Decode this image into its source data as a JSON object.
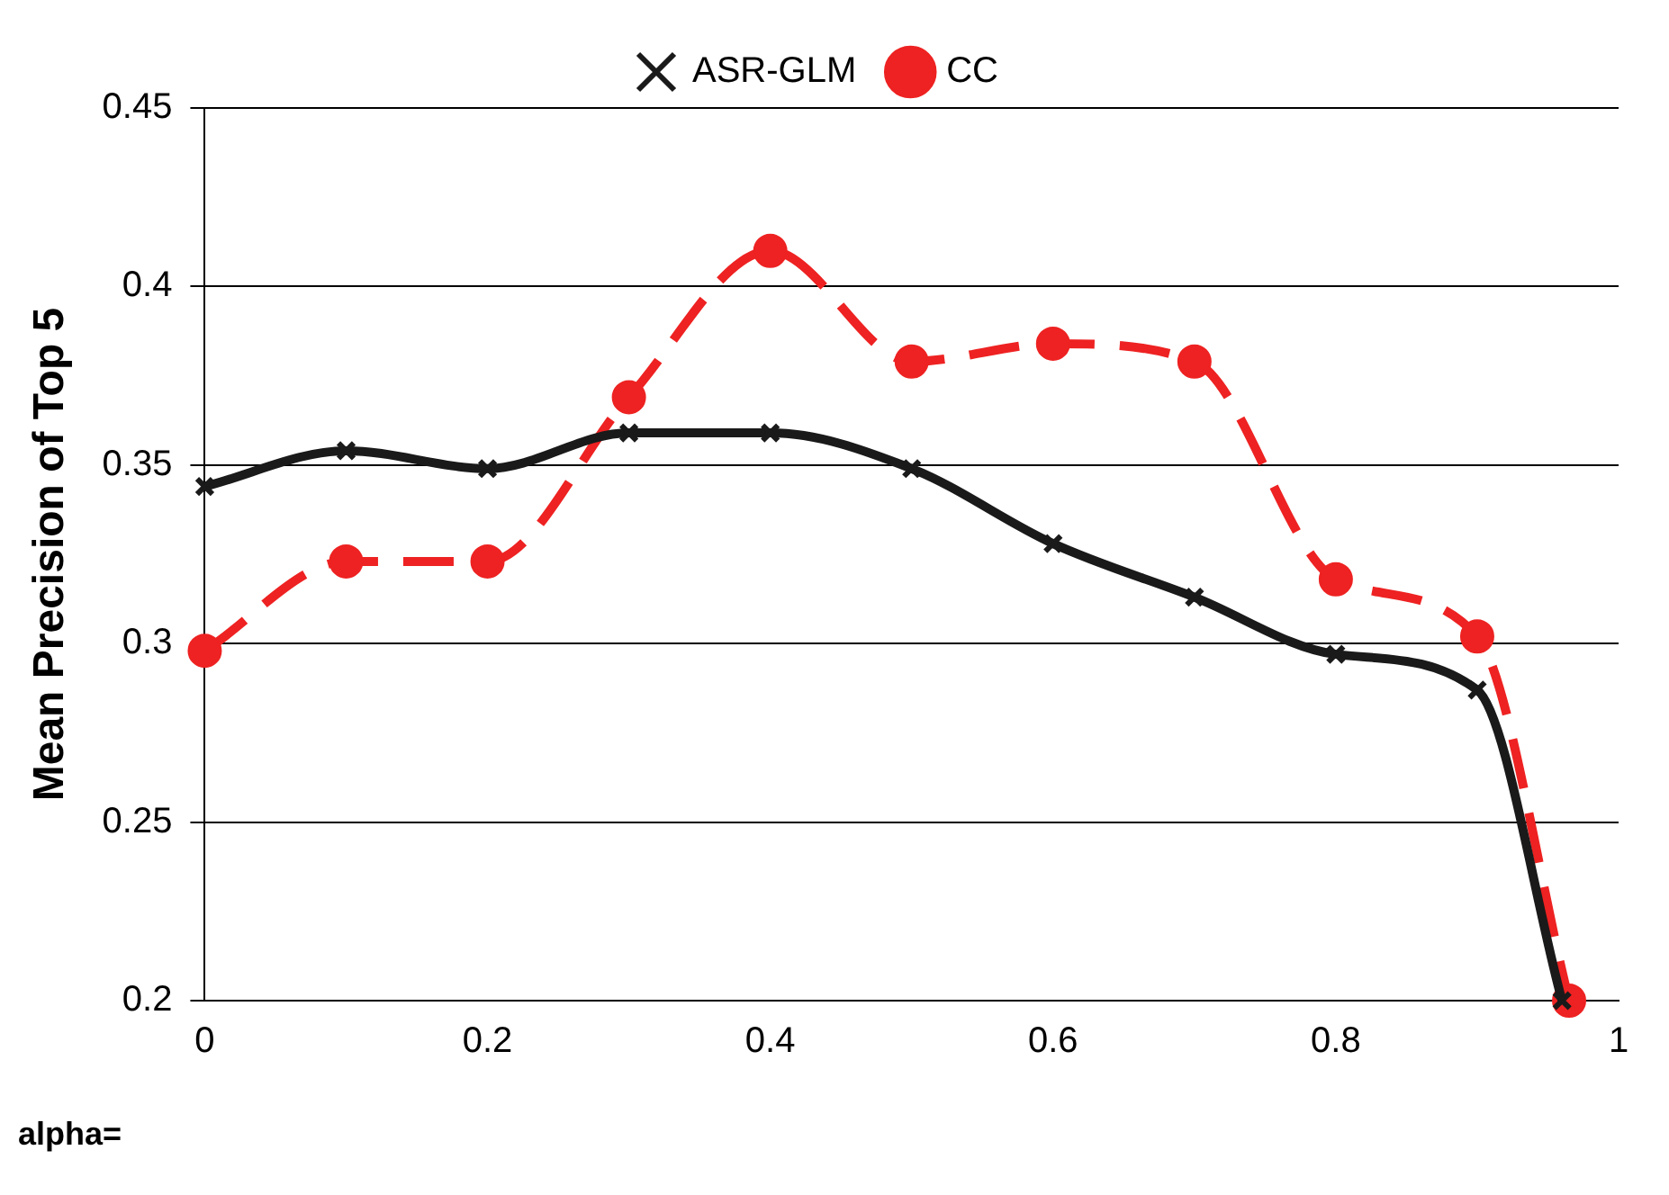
{
  "chart_data": {
    "type": "line",
    "ylabel": "Mean Precision of Top 5",
    "annotations": [
      "alpha="
    ],
    "xlim": [
      0,
      1
    ],
    "xticks": [
      0,
      0.2,
      0.4,
      0.6,
      0.8,
      1
    ],
    "ylim": [
      0.2,
      0.45
    ],
    "yticks": [
      0.2,
      0.25,
      0.3,
      0.35,
      0.4,
      0.45
    ],
    "grid": "y",
    "legend": "top",
    "series": [
      {
        "name": "ASR-GLM",
        "color": "#1a1a1a",
        "marker": "cross",
        "line_style": "solid",
        "x": [
          0,
          0.1,
          0.2,
          0.3,
          0.4,
          0.5,
          0.6,
          0.7,
          0.8,
          0.9,
          0.96
        ],
        "values": [
          0.344,
          0.354,
          0.349,
          0.359,
          0.359,
          0.349,
          0.328,
          0.313,
          0.297,
          0.287,
          0.2
        ]
      },
      {
        "name": "CC",
        "color": "#ee2222",
        "marker": "circle",
        "line_style": "dashed",
        "x": [
          0,
          0.1,
          0.2,
          0.3,
          0.4,
          0.5,
          0.6,
          0.7,
          0.8,
          0.9,
          0.965
        ],
        "values": [
          0.298,
          0.323,
          0.323,
          0.369,
          0.41,
          0.379,
          0.384,
          0.379,
          0.318,
          0.302,
          0.2
        ]
      }
    ]
  }
}
